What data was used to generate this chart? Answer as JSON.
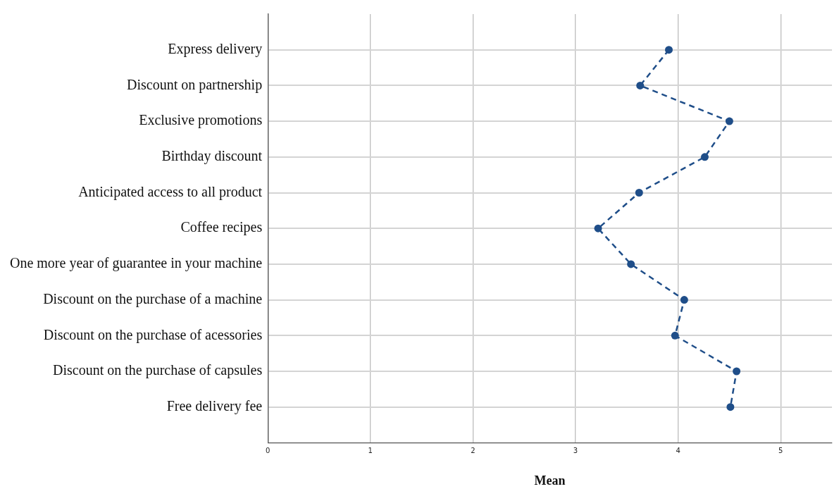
{
  "chart_data": {
    "type": "line",
    "orientation": "horizontal",
    "categories": [
      "Express delivery",
      "Discount on partnership",
      "Exclusive promotions",
      "Birthday discount",
      "Anticipated access to all product",
      "Coffee recipes",
      "One more year of guarantee in your machine",
      "Discount on the purchase of a machine",
      "Discount on the purchase of acessories",
      "Discount on the purchase of capsules",
      "Free delivery fee"
    ],
    "values": [
      3.91,
      3.63,
      4.5,
      4.26,
      3.62,
      3.22,
      3.54,
      4.06,
      3.97,
      4.57,
      4.51
    ],
    "color": "#1f4e89",
    "xlabel": "Mean",
    "xlim": [
      0,
      5.5
    ],
    "xticks": [
      0,
      1,
      2,
      3,
      4,
      5
    ],
    "grid": true,
    "marker": "circle",
    "line_style": "dashed"
  }
}
